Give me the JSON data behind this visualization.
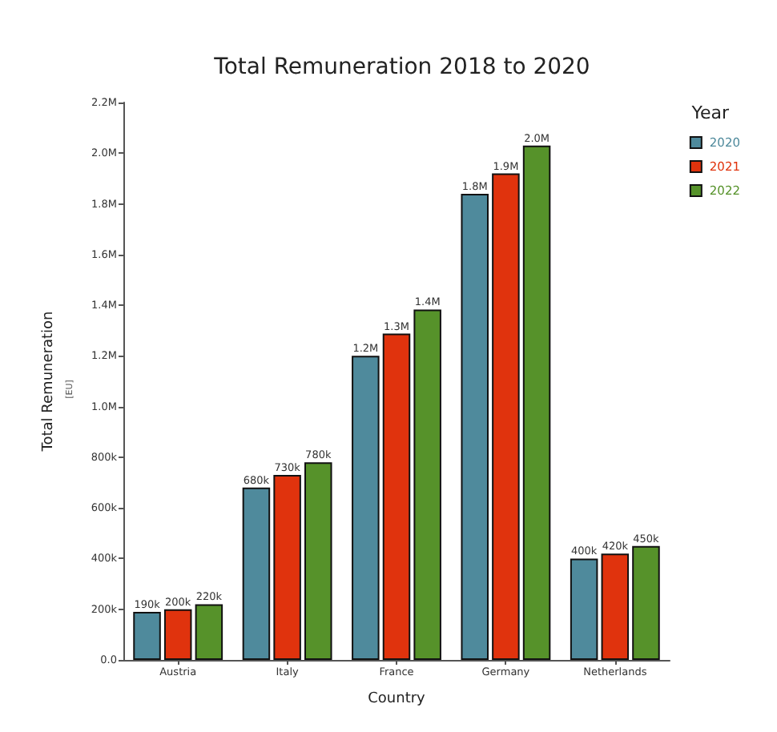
{
  "chart_data": {
    "type": "bar",
    "title": "Total Remuneration 2018 to 2020",
    "xlabel": "Country",
    "ylabel": "Total Remuneration",
    "annotations": [
      "[EU]"
    ],
    "legend_title": "Year",
    "categories": [
      "Austria",
      "Italy",
      "France",
      "Germany",
      "Netherlands"
    ],
    "series": [
      {
        "name": "2020",
        "color": "#4f8a9c",
        "values": [
          190000,
          680000,
          1200000,
          1840000,
          400000
        ],
        "value_labels": [
          "190k",
          "680k",
          "1.2M",
          "1.8M",
          "400k"
        ]
      },
      {
        "name": "2021",
        "color": "#e0330d",
        "values": [
          200000,
          730000,
          1288000,
          1920000,
          420000
        ],
        "value_labels": [
          "200k",
          "730k",
          "1.3M",
          "1.9M",
          "420k"
        ]
      },
      {
        "name": "2022",
        "color": "#56922a",
        "values": [
          220000,
          780000,
          1383000,
          2030000,
          450000
        ],
        "value_labels": [
          "220k",
          "780k",
          "1.4M",
          "2.0M",
          "450k"
        ]
      }
    ],
    "ylim": [
      0,
      2200000
    ],
    "yticks": [
      {
        "value": 0,
        "label": "0.0"
      },
      {
        "value": 200000,
        "label": "200k"
      },
      {
        "value": 400000,
        "label": "400k"
      },
      {
        "value": 600000,
        "label": "600k"
      },
      {
        "value": 800000,
        "label": "800k"
      },
      {
        "value": 1000000,
        "label": "1.0M"
      },
      {
        "value": 1200000,
        "label": "1.2M"
      },
      {
        "value": 1400000,
        "label": "1.4M"
      },
      {
        "value": 1600000,
        "label": "1.6M"
      },
      {
        "value": 1800000,
        "label": "1.8M"
      },
      {
        "value": 2000000,
        "label": "2.0M"
      },
      {
        "value": 2200000,
        "label": "2.2M"
      }
    ],
    "grid": false,
    "legend": "top right"
  }
}
